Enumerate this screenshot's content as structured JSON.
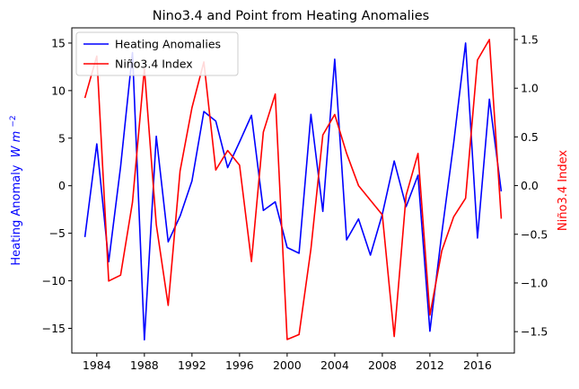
{
  "chart_data": {
    "type": "line",
    "title": "Nino3.4 and Point from Heating Anomalies",
    "xlabel": "",
    "ylabel_left": "Heating Anomaly",
    "ylabel_left_unit": "W m",
    "ylabel_left_exp": "−2",
    "ylabel_right": "Niño3.4 Index",
    "xlim": [
      1981.9,
      2019.1
    ],
    "ylim_left": [
      -17.6,
      16.6
    ],
    "ylim_right": [
      -1.72,
      1.62
    ],
    "x_ticks": [
      1984,
      1988,
      1992,
      1996,
      2000,
      2004,
      2008,
      2012,
      2016
    ],
    "x_tick_labels": [
      "1984",
      "1988",
      "1992",
      "1996",
      "2000",
      "2004",
      "2008",
      "2012",
      "2016"
    ],
    "y_left_ticks": [
      -15,
      -10,
      -5,
      0,
      5,
      10,
      15
    ],
    "y_left_tick_labels": [
      "−15",
      "−10",
      "−5",
      "0",
      "5",
      "10",
      "15"
    ],
    "y_right_ticks": [
      -1.5,
      -1.0,
      -0.5,
      0.0,
      0.5,
      1.0,
      1.5
    ],
    "y_right_tick_labels": [
      "−1.5",
      "−1.0",
      "−0.5",
      "0.0",
      "0.5",
      "1.0",
      "1.5"
    ],
    "legend_placement": "top-left",
    "grid": false,
    "series": [
      {
        "name": "Heating Anomalies",
        "color": "#0000ff",
        "axis": "left",
        "x": [
          1983,
          1984,
          1985,
          1986,
          1987,
          1988,
          1989,
          1990,
          1991,
          1992,
          1993,
          1994,
          1995,
          1996,
          1997,
          1998,
          1999,
          2000,
          2001,
          2002,
          2003,
          2004,
          2005,
          2006,
          2007,
          2008,
          2009,
          2010,
          2011,
          2012,
          2013,
          2014,
          2015,
          2016,
          2017,
          2018
        ],
        "values": [
          -5.4,
          4.4,
          -8.0,
          2.0,
          14.0,
          -16.2,
          5.2,
          -5.9,
          -3.2,
          0.5,
          7.8,
          6.8,
          1.9,
          4.6,
          7.4,
          -2.6,
          -1.7,
          -6.5,
          -7.1,
          7.5,
          -2.7,
          13.3,
          -5.7,
          -3.5,
          -7.3,
          -3.0,
          2.6,
          -2.2,
          1.1,
          -15.3,
          -5.0,
          4.5,
          15.0,
          -5.5,
          9.1,
          -0.6
        ]
      },
      {
        "name": "Niño3.4 Index",
        "color": "#ff0000",
        "axis": "right",
        "x": [
          1983,
          1984,
          1985,
          1986,
          1987,
          1988,
          1989,
          1990,
          1991,
          1992,
          1993,
          1994,
          1995,
          1996,
          1997,
          1998,
          1999,
          2000,
          2001,
          2002,
          2003,
          2004,
          2005,
          2006,
          2007,
          2008,
          2009,
          2010,
          2011,
          2012,
          2013,
          2014,
          2015,
          2016,
          2017,
          2018
        ],
        "values": [
          0.9,
          1.33,
          -0.98,
          -0.92,
          -0.17,
          1.2,
          -0.4,
          -1.23,
          0.15,
          0.8,
          1.27,
          0.16,
          0.36,
          0.21,
          -0.78,
          0.55,
          0.94,
          -1.58,
          -1.53,
          -0.65,
          0.52,
          0.73,
          0.33,
          0.0,
          -0.15,
          -0.3,
          -1.55,
          -0.1,
          0.33,
          -1.33,
          -0.67,
          -0.32,
          -0.13,
          1.29,
          1.5,
          -0.34
        ]
      }
    ]
  }
}
